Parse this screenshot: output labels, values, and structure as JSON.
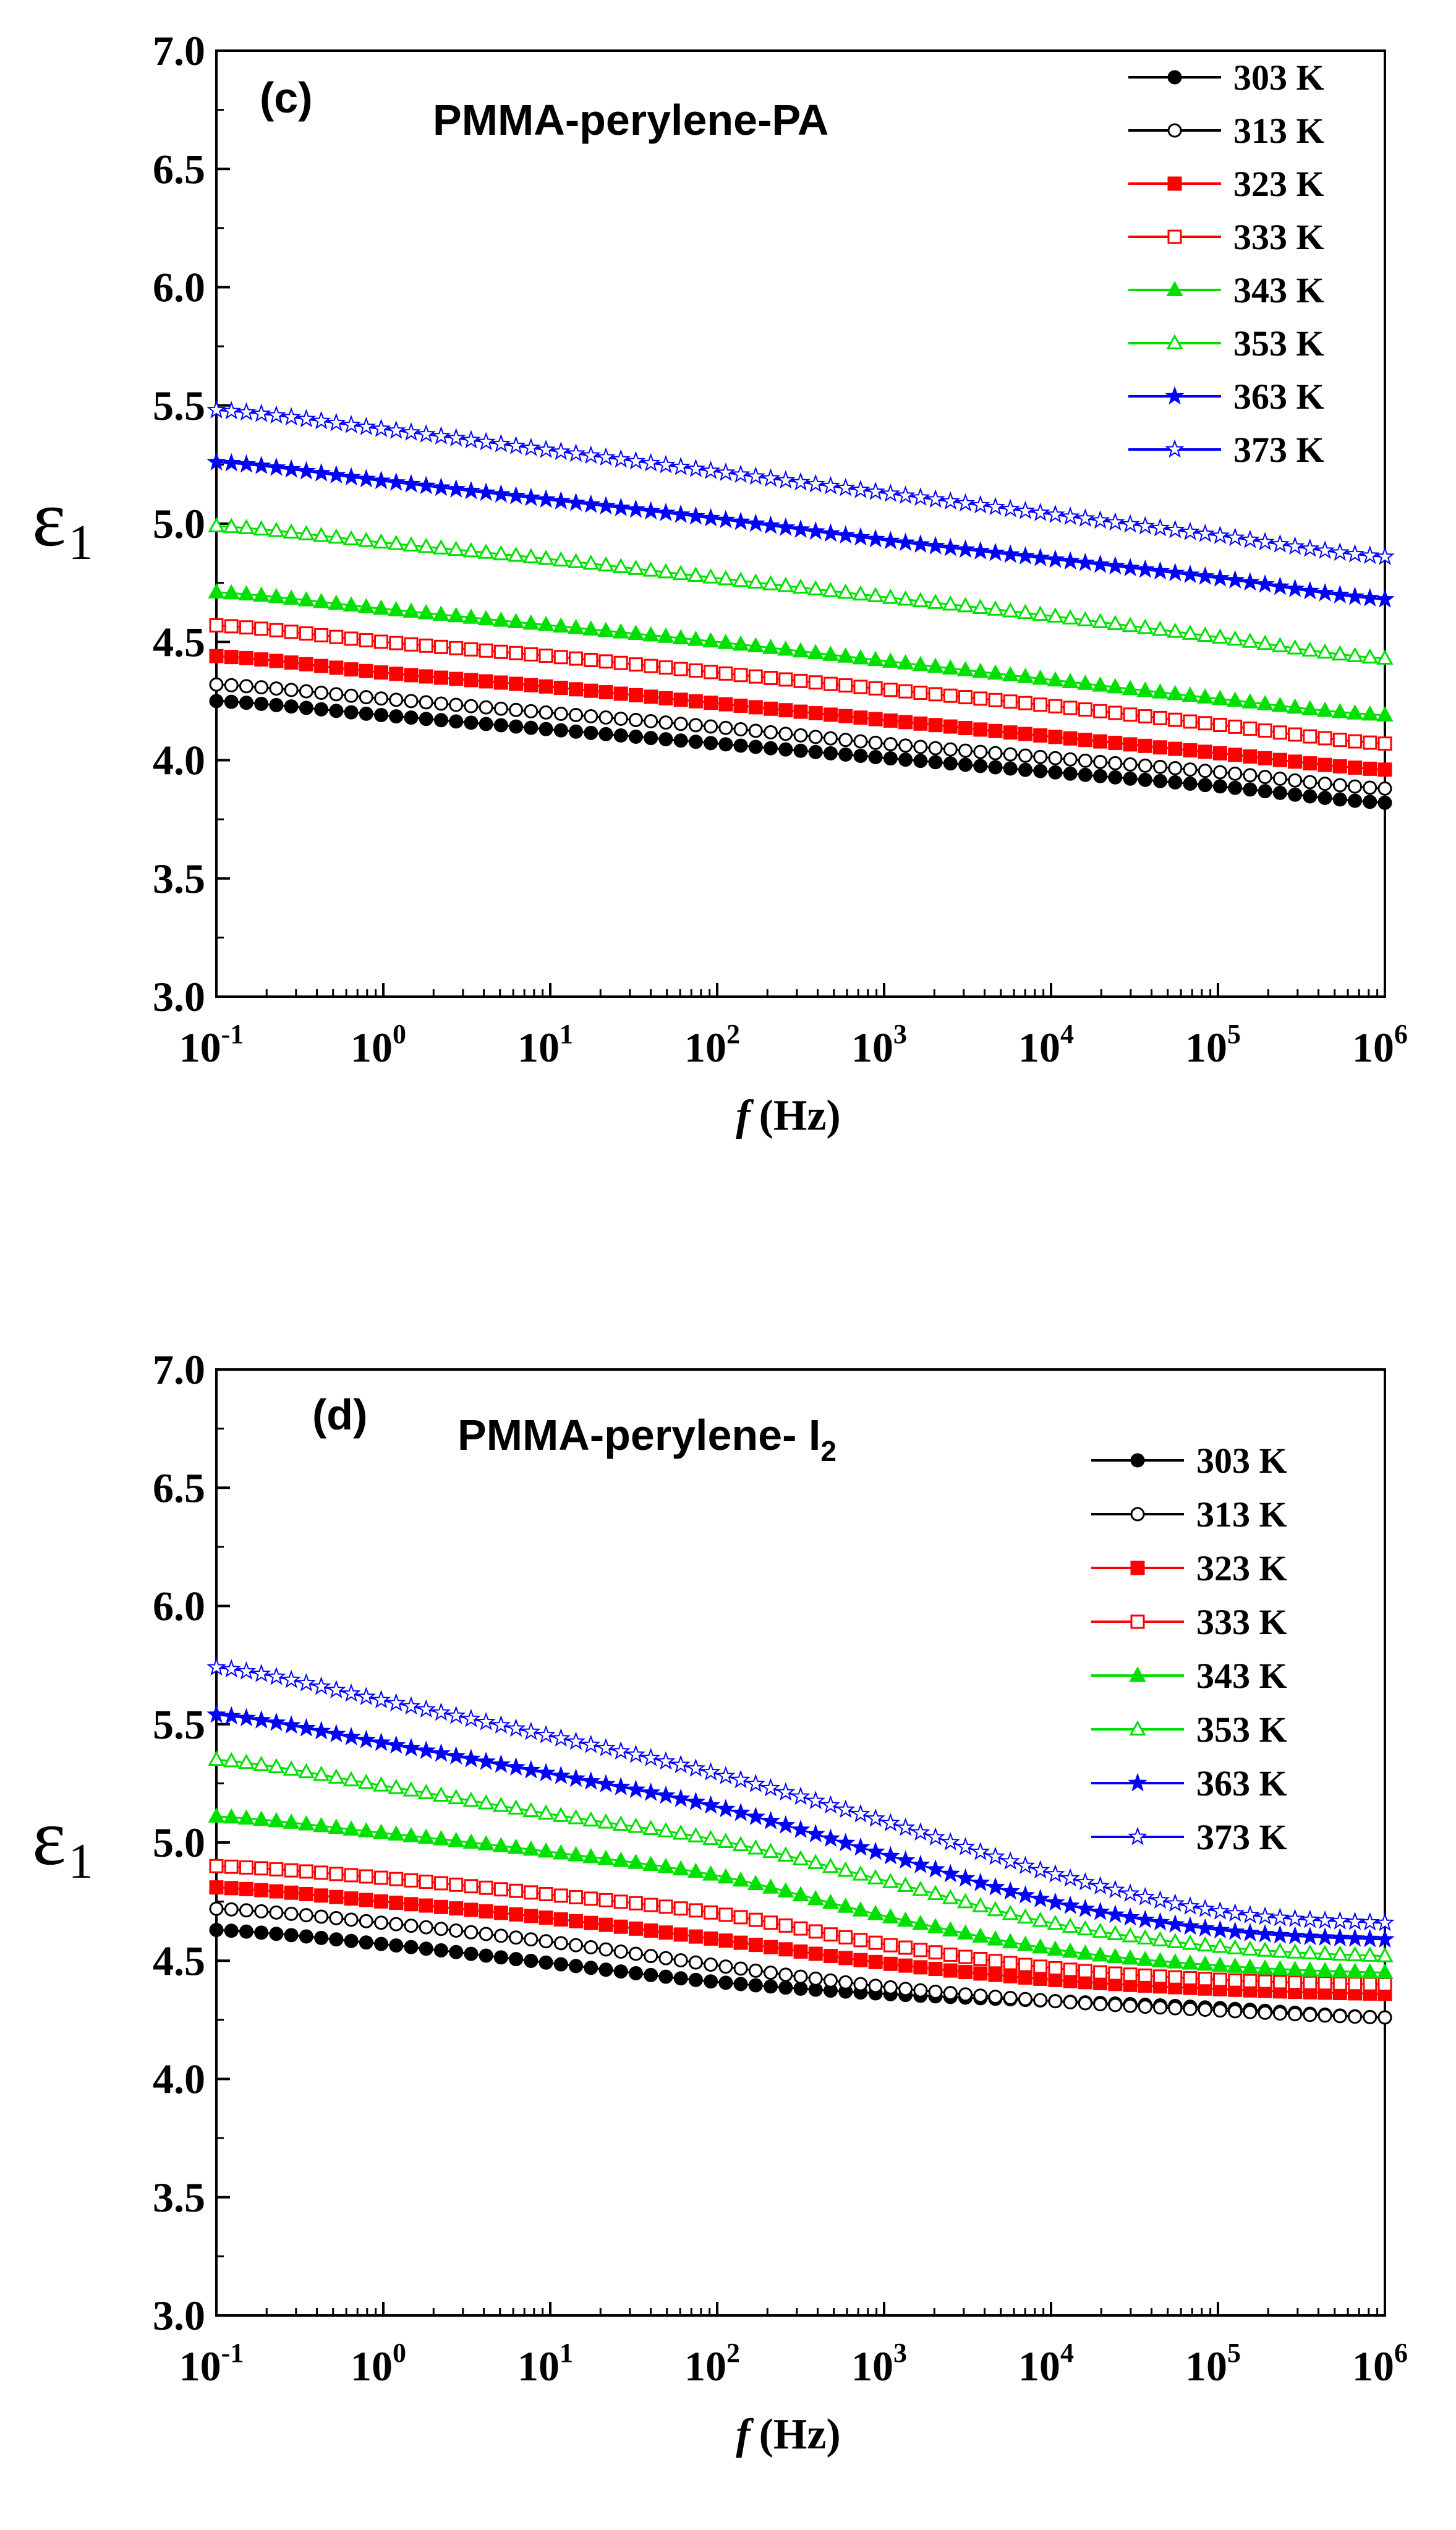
{
  "figure": {
    "panels": [
      {
        "label": "(c)",
        "title": "PMMA-perylene-PA",
        "title_subscript": "",
        "legend_position": "top-right"
      },
      {
        "label": "(d)",
        "title": "PMMA-perylene- I",
        "title_subscript": "2",
        "legend_position": "top-right"
      }
    ]
  },
  "chart_data": [
    {
      "type": "line",
      "title": "PMMA-perylene-PA",
      "panel_label": "(c)",
      "xlabel": "f",
      "xlabel_unit": "(Hz)",
      "ylabel": "ε",
      "ylabel_subscript": "1",
      "xscale": "log",
      "xlim": [
        0.1,
        1000000
      ],
      "ylim": [
        3.0,
        7.0
      ],
      "x_ticks": [
        {
          "base": "10",
          "exp": "-1"
        },
        {
          "base": "10",
          "exp": "0"
        },
        {
          "base": "10",
          "exp": "1"
        },
        {
          "base": "10",
          "exp": "2"
        },
        {
          "base": "10",
          "exp": "3"
        },
        {
          "base": "10",
          "exp": "4"
        },
        {
          "base": "10",
          "exp": "5"
        },
        {
          "base": "10",
          "exp": "6"
        }
      ],
      "y_ticks": [
        "3.0",
        "3.5",
        "4.0",
        "4.5",
        "5.0",
        "5.5",
        "6.0",
        "6.5",
        "7.0"
      ],
      "x": [
        0.1,
        1,
        10,
        100,
        1000,
        10000,
        100000,
        1000000
      ],
      "series": [
        {
          "name": "303 K",
          "color": "#000000",
          "marker": "circle",
          "filled": true,
          "values": [
            4.25,
            4.19,
            4.13,
            4.07,
            4.01,
            3.95,
            3.89,
            3.82
          ]
        },
        {
          "name": "313 K",
          "color": "#000000",
          "marker": "circle",
          "filled": false,
          "values": [
            4.32,
            4.26,
            4.2,
            4.14,
            4.07,
            4.01,
            3.95,
            3.88
          ]
        },
        {
          "name": "323 K",
          "color": "#ff0000",
          "marker": "square",
          "filled": true,
          "values": [
            4.44,
            4.37,
            4.31,
            4.24,
            4.17,
            4.1,
            4.03,
            3.96
          ]
        },
        {
          "name": "333 K",
          "color": "#ff0000",
          "marker": "square",
          "filled": false,
          "values": [
            4.57,
            4.5,
            4.44,
            4.37,
            4.3,
            4.23,
            4.15,
            4.07
          ]
        },
        {
          "name": "343 K",
          "color": "#00e000",
          "marker": "triangle",
          "filled": true,
          "values": [
            4.71,
            4.64,
            4.57,
            4.5,
            4.42,
            4.34,
            4.26,
            4.19
          ]
        },
        {
          "name": "353 K",
          "color": "#00e000",
          "marker": "triangle",
          "filled": false,
          "values": [
            4.99,
            4.92,
            4.85,
            4.77,
            4.69,
            4.61,
            4.52,
            4.43
          ]
        },
        {
          "name": "363 K",
          "color": "#0000ff",
          "marker": "star",
          "filled": true,
          "values": [
            5.26,
            5.18,
            5.1,
            5.02,
            4.93,
            4.85,
            4.77,
            4.68
          ]
        },
        {
          "name": "373 K",
          "color": "#0000ff",
          "marker": "star",
          "filled": false,
          "values": [
            5.48,
            5.4,
            5.31,
            5.22,
            5.13,
            5.04,
            4.95,
            4.86
          ]
        }
      ]
    },
    {
      "type": "line",
      "title": "PMMA-perylene- I2",
      "panel_label": "(d)",
      "xlabel": "f",
      "xlabel_unit": "(Hz)",
      "ylabel": "ε",
      "ylabel_subscript": "1",
      "xscale": "log",
      "xlim": [
        0.1,
        1000000
      ],
      "ylim": [
        3.0,
        7.0
      ],
      "x_ticks": [
        {
          "base": "10",
          "exp": "-1"
        },
        {
          "base": "10",
          "exp": "0"
        },
        {
          "base": "10",
          "exp": "1"
        },
        {
          "base": "10",
          "exp": "2"
        },
        {
          "base": "10",
          "exp": "3"
        },
        {
          "base": "10",
          "exp": "4"
        },
        {
          "base": "10",
          "exp": "5"
        },
        {
          "base": "10",
          "exp": "6"
        }
      ],
      "y_ticks": [
        "3.0",
        "3.5",
        "4.0",
        "4.5",
        "5.0",
        "5.5",
        "6.0",
        "6.5",
        "7.0"
      ],
      "x": [
        0.1,
        1,
        10,
        100,
        1000,
        10000,
        100000,
        1000000
      ],
      "series": [
        {
          "name": "303 K",
          "color": "#000000",
          "marker": "circle",
          "filled": true,
          "values": [
            4.63,
            4.57,
            4.49,
            4.41,
            4.36,
            4.33,
            4.3,
            4.26
          ]
        },
        {
          "name": "313 K",
          "color": "#000000",
          "marker": "circle",
          "filled": false,
          "values": [
            4.72,
            4.66,
            4.58,
            4.48,
            4.39,
            4.33,
            4.29,
            4.26
          ]
        },
        {
          "name": "323 K",
          "color": "#ff0000",
          "marker": "square",
          "filled": true,
          "values": [
            4.81,
            4.75,
            4.68,
            4.59,
            4.49,
            4.42,
            4.38,
            4.36
          ]
        },
        {
          "name": "333 K",
          "color": "#ff0000",
          "marker": "square",
          "filled": false,
          "values": [
            4.9,
            4.85,
            4.78,
            4.7,
            4.57,
            4.47,
            4.42,
            4.4
          ]
        },
        {
          "name": "343 K",
          "color": "#00e000",
          "marker": "triangle",
          "filled": true,
          "values": [
            5.11,
            5.04,
            4.96,
            4.86,
            4.69,
            4.55,
            4.48,
            4.45
          ]
        },
        {
          "name": "353 K",
          "color": "#00e000",
          "marker": "triangle",
          "filled": false,
          "values": [
            5.35,
            5.24,
            5.12,
            5.01,
            4.84,
            4.66,
            4.56,
            4.52
          ]
        },
        {
          "name": "363 K",
          "color": "#0000ff",
          "marker": "star",
          "filled": true,
          "values": [
            5.54,
            5.42,
            5.29,
            5.15,
            4.95,
            4.75,
            4.63,
            4.59
          ]
        },
        {
          "name": "373 K",
          "color": "#0000ff",
          "marker": "star",
          "filled": false,
          "values": [
            5.74,
            5.6,
            5.45,
            5.29,
            5.09,
            4.87,
            4.71,
            4.66
          ]
        }
      ]
    }
  ]
}
